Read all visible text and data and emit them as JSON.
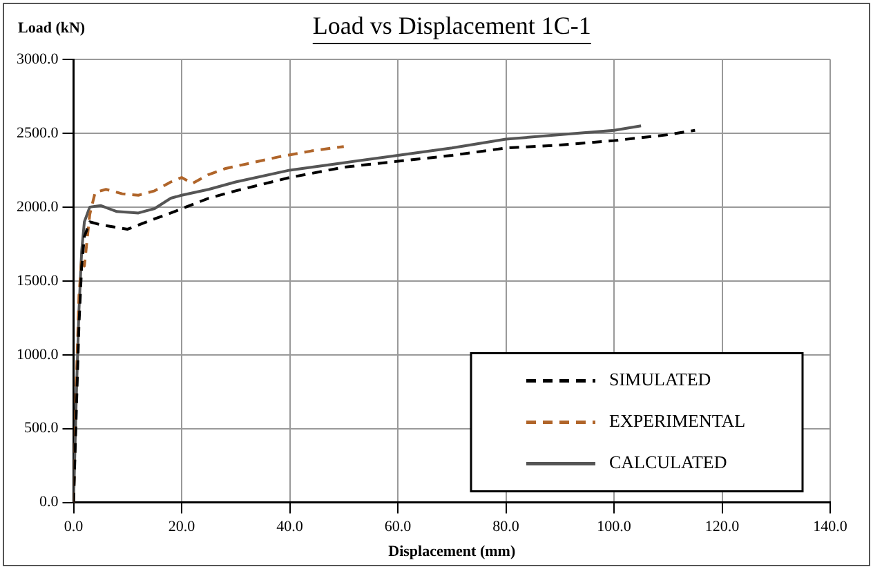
{
  "chart_data": {
    "type": "line",
    "title": "Load vs Displacement 1C-1",
    "xlabel": "Displacement (mm)",
    "ylabel": "Load (kN)",
    "xlim": [
      0,
      140
    ],
    "ylim": [
      0,
      3000
    ],
    "xticks": [
      {
        "value": 0,
        "label": "0.0"
      },
      {
        "value": 20,
        "label": "20.0"
      },
      {
        "value": 40,
        "label": "40.0"
      },
      {
        "value": 60,
        "label": "60.0"
      },
      {
        "value": 80,
        "label": "80.0"
      },
      {
        "value": 100,
        "label": "100.0"
      },
      {
        "value": 120,
        "label": "120.0"
      },
      {
        "value": 140,
        "label": "140.0"
      }
    ],
    "yticks": [
      {
        "value": 0,
        "label": "0.0"
      },
      {
        "value": 500,
        "label": "500.0"
      },
      {
        "value": 1000,
        "label": "1000.0"
      },
      {
        "value": 1500,
        "label": "1500.0"
      },
      {
        "value": 2000,
        "label": "2000.0"
      },
      {
        "value": 2500,
        "label": "2500.0"
      },
      {
        "value": 3000,
        "label": "3000.0"
      }
    ],
    "grid": true,
    "legend": "bottom right",
    "marker": "none",
    "series": [
      {
        "name": "SIMULATED",
        "color": "#000000",
        "line_style": "dashed",
        "x": [
          0,
          0.5,
          1,
          1.5,
          2,
          3,
          5,
          10,
          15,
          18,
          25,
          30,
          40,
          50,
          60,
          70,
          80,
          90,
          100,
          110,
          115
        ],
        "values": [
          0,
          600,
          1200,
          1600,
          1800,
          1900,
          1880,
          1850,
          1920,
          1960,
          2060,
          2110,
          2200,
          2270,
          2310,
          2350,
          2400,
          2420,
          2450,
          2490,
          2520
        ]
      },
      {
        "name": "EXPERIMENTAL",
        "color": "#b0652a",
        "line_style": "dashed",
        "x": [
          0,
          0.5,
          1,
          1.5,
          2,
          3,
          4,
          6,
          9,
          12,
          15,
          18,
          20,
          22,
          25,
          28,
          33,
          38,
          44,
          50
        ],
        "values": [
          0,
          800,
          1400,
          1650,
          1600,
          1950,
          2100,
          2120,
          2090,
          2080,
          2110,
          2170,
          2200,
          2160,
          2220,
          2260,
          2300,
          2340,
          2380,
          2410
        ]
      },
      {
        "name": "CALCULATED",
        "color": "#555555",
        "line_style": "solid",
        "x": [
          0,
          0.5,
          1,
          1.5,
          2,
          3,
          5,
          8,
          12,
          15,
          18,
          20,
          25,
          30,
          40,
          50,
          60,
          70,
          80,
          90,
          100,
          105
        ],
        "values": [
          0,
          700,
          1300,
          1700,
          1900,
          2000,
          2010,
          1970,
          1960,
          1990,
          2060,
          2080,
          2120,
          2170,
          2250,
          2300,
          2350,
          2400,
          2460,
          2490,
          2520,
          2550
        ]
      }
    ]
  }
}
